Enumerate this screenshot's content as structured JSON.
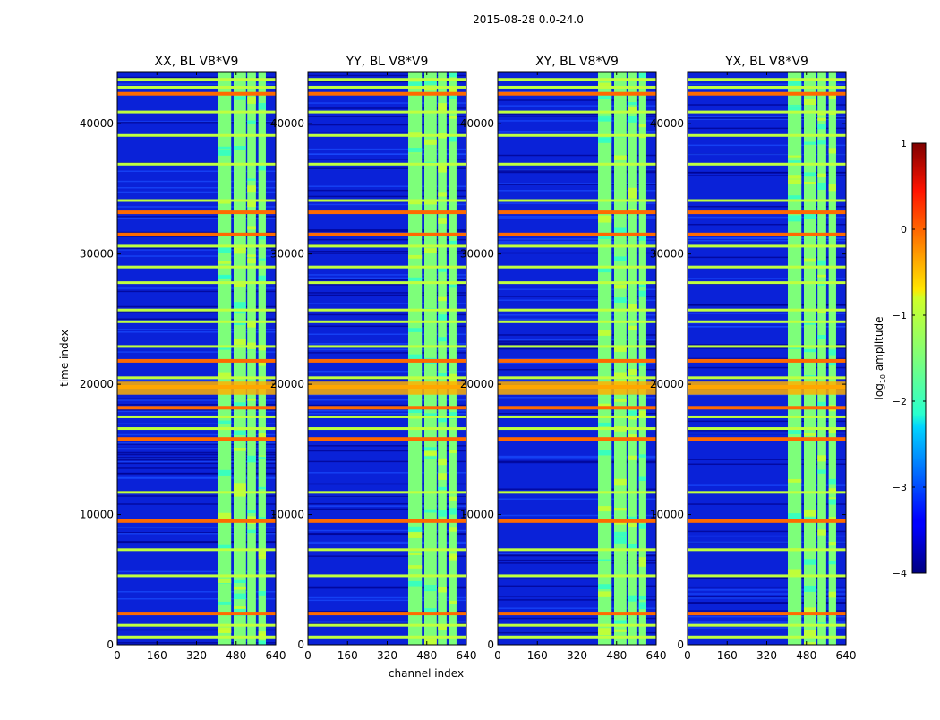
{
  "chart_data": {
    "type": "heatmap",
    "suptitle": "2015-08-28 0.0-24.0",
    "xlabel": "channel index",
    "ylabel": "time index",
    "xlim": [
      0,
      640
    ],
    "ylim": [
      0,
      44000
    ],
    "xticks": [
      0,
      160,
      320,
      480,
      640
    ],
    "yticks": [
      0,
      10000,
      20000,
      30000,
      40000
    ],
    "xtick_labels": [
      "0",
      "160",
      "320",
      "480",
      "640"
    ],
    "ytick_labels": [
      "0",
      "10000",
      "20000",
      "30000",
      "40000"
    ],
    "rfi_channel_bands": [
      [
        405,
        460
      ],
      [
        470,
        520
      ],
      [
        525,
        560
      ],
      [
        570,
        600
      ]
    ],
    "strong_time_rows": [
      2400,
      9500,
      15800,
      18200,
      19800,
      21800,
      31500,
      33200,
      42300
    ],
    "moderate_time_rows": [
      600,
      1500,
      5300,
      7300,
      11700,
      16600,
      17500,
      20500,
      22900,
      24800,
      25700,
      27800,
      29000,
      30600,
      34100,
      36900,
      39100,
      40900,
      42800,
      43400
    ],
    "panels": [
      {
        "name": "XX",
        "title": "XX, BL V8*V9"
      },
      {
        "name": "YY",
        "title": "YY, BL V8*V9"
      },
      {
        "name": "XY",
        "title": "XY, BL V8*V9"
      },
      {
        "name": "YX",
        "title": "YX, BL V8*V9"
      }
    ],
    "colorbar": {
      "label": "log$_{10}$ amplitude",
      "label_prefix": "log",
      "label_sub": "10",
      "label_suffix": " amplitude",
      "range": [
        -4,
        1
      ],
      "ticks": [
        1,
        0,
        -1,
        -2,
        -3,
        -4
      ],
      "tick_labels": [
        "1",
        "0",
        "−1",
        "−2",
        "−3",
        "−4"
      ],
      "colormap": "jet"
    }
  }
}
